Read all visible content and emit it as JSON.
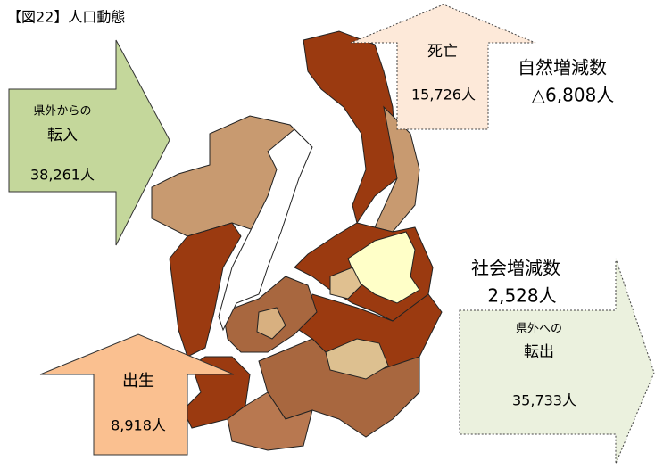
{
  "title": "【図22】人口動態",
  "in_migration": {
    "from": "県外からの",
    "label": "転入",
    "count": "38,261人"
  },
  "deaths": {
    "label": "死亡",
    "count": "15,726人"
  },
  "natural_change": {
    "label": "自然増減数",
    "count": "△6,808人"
  },
  "social_change": {
    "label": "社会増減数",
    "count": "2,528人"
  },
  "out_migration": {
    "to": "県外への",
    "label": "転出",
    "count": "35,733人"
  },
  "births": {
    "label": "出生",
    "count": "8,918人"
  }
}
